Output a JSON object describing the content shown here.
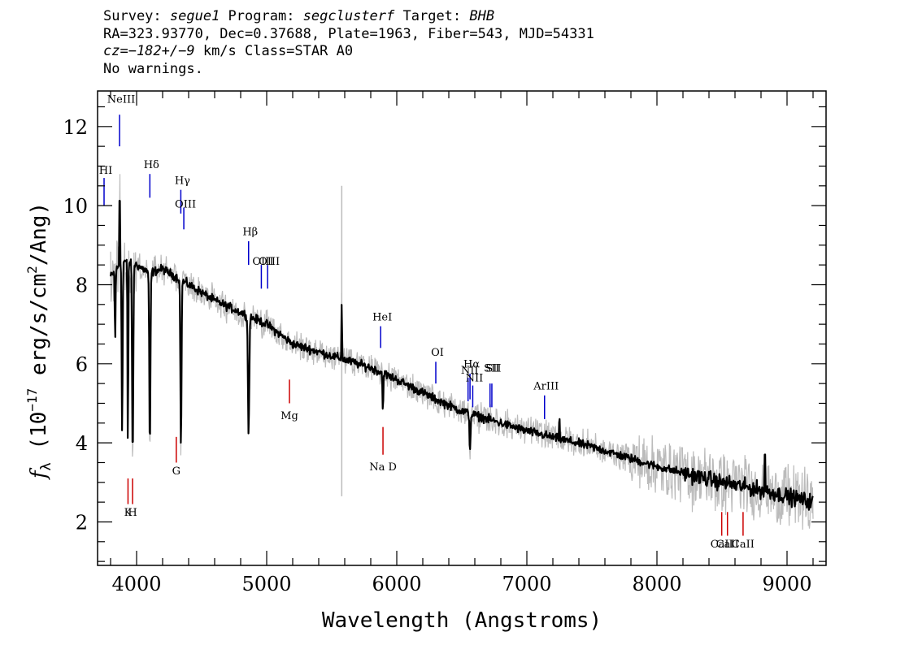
{
  "header": {
    "line1": {
      "survey_label": "Survey: ",
      "survey": "segue1",
      "program_label": " Program: ",
      "program": "segclusterf",
      "target_label": " Target: ",
      "target": "BHB"
    },
    "line2": "RA=323.93770, Dec=0.37688, Plate=1963, Fiber=543, MJD=54331",
    "line3": {
      "cz": "cz=−182+/−9",
      "rest": " km/s Class=STAR A0"
    },
    "line4": "No warnings."
  },
  "chart_data": {
    "type": "line",
    "xlabel": "Wavelength (Angstroms)",
    "ylabel_parts": {
      "f": "f",
      "sub": "λ",
      "unit_open": " (10",
      "exp": "−17",
      "unit_mid": " erg/s/cm",
      "exp2": "2",
      "unit_close": "/Ang)"
    },
    "xlim": [
      3700,
      9300
    ],
    "ylim": [
      0.9,
      12.9
    ],
    "x_ticks": [
      4000,
      5000,
      6000,
      7000,
      8000,
      9000
    ],
    "y_ticks": [
      2,
      4,
      6,
      8,
      10,
      12
    ],
    "spectrum": {
      "x_start": 3800,
      "x_end": 9200,
      "continuum_knots": [
        [
          3800,
          8.2
        ],
        [
          3900,
          8.6
        ],
        [
          4000,
          8.5
        ],
        [
          4100,
          8.3
        ],
        [
          4200,
          8.4
        ],
        [
          4400,
          8.0
        ],
        [
          4600,
          7.6
        ],
        [
          4800,
          7.3
        ],
        [
          5000,
          7.0
        ],
        [
          5200,
          6.5
        ],
        [
          5500,
          6.2
        ],
        [
          5800,
          5.9
        ],
        [
          6000,
          5.6
        ],
        [
          6300,
          5.1
        ],
        [
          6500,
          4.8
        ],
        [
          7000,
          4.3
        ],
        [
          7500,
          3.9
        ],
        [
          8000,
          3.4
        ],
        [
          8500,
          3.0
        ],
        [
          8800,
          2.8
        ],
        [
          9200,
          2.5
        ]
      ],
      "absorption_lines": [
        {
          "x": 3835,
          "depth": 1.8,
          "width": 4
        },
        {
          "x": 3889,
          "depth": 4.4,
          "width": 5
        },
        {
          "x": 3933,
          "depth": 4.8,
          "width": 4
        },
        {
          "x": 3970,
          "depth": 5.1,
          "width": 6
        },
        {
          "x": 4102,
          "depth": 4.6,
          "width": 6
        },
        {
          "x": 4341,
          "depth": 4.3,
          "width": 6
        },
        {
          "x": 4861,
          "depth": 3.0,
          "width": 7
        },
        {
          "x": 5893,
          "depth": 1.0,
          "width": 4
        },
        {
          "x": 6563,
          "depth": 0.9,
          "width": 6
        }
      ],
      "emission_spikes": [
        {
          "x": 3870,
          "height": 2.6
        },
        {
          "x": 5577,
          "height": 1.6
        },
        {
          "x": 7250,
          "height": 0.6
        },
        {
          "x": 8830,
          "height": 1.5
        }
      ]
    },
    "sky_line": {
      "x": 5577,
      "low": 2.65,
      "high": 10.5
    },
    "emission_line_markers": [
      {
        "name": "NeIII",
        "x": 3869,
        "y1": 11.5,
        "y2": 12.3,
        "label_y": 12.6
      },
      {
        "name": "HI",
        "x": 3750,
        "y1": 10.0,
        "y2": 10.7,
        "label_y": 10.8
      },
      {
        "name": "Hδ",
        "x": 4102,
        "y1": 10.2,
        "y2": 10.8,
        "label_y": 10.95
      },
      {
        "name": "Hγ",
        "x": 4340,
        "y1": 9.8,
        "y2": 10.4,
        "label_y": 10.55
      },
      {
        "name": "OIII",
        "x": 4363,
        "y1": 9.4,
        "y2": 9.95,
        "label_y": 9.95
      },
      {
        "name": "Hβ",
        "x": 4861,
        "y1": 8.5,
        "y2": 9.1,
        "label_y": 9.25
      },
      {
        "name": "OIII",
        "x": 4959,
        "y1": 7.9,
        "y2": 8.5,
        "label_y": 8.5
      },
      {
        "name": "OIII",
        "x": 5007,
        "y1": 7.9,
        "y2": 8.5,
        "label_y": 8.5
      },
      {
        "name": "HeI",
        "x": 5876,
        "y1": 6.4,
        "y2": 6.95,
        "label_y": 7.1
      },
      {
        "name": "OI",
        "x": 6300,
        "y1": 5.5,
        "y2": 6.05,
        "label_y": 6.2
      },
      {
        "name": "NII",
        "x": 6548,
        "y1": 5.05,
        "y2": 5.65,
        "label_y": 5.75
      },
      {
        "name": "Hα",
        "x": 6563,
        "y1": 5.1,
        "y2": 5.75,
        "label_y": 5.9
      },
      {
        "name": "NII",
        "x": 6584,
        "y1": 4.9,
        "y2": 5.45,
        "label_y": 5.55
      },
      {
        "name": "SII",
        "x": 6717,
        "y1": 4.9,
        "y2": 5.5,
        "label_y": 5.8
      },
      {
        "name": "SII",
        "x": 6731,
        "y1": 4.9,
        "y2": 5.5,
        "label_y": 5.8
      },
      {
        "name": "ArIII",
        "x": 7136,
        "y1": 4.6,
        "y2": 5.2,
        "label_y": 5.35
      }
    ],
    "absorption_line_markers": [
      {
        "name": "K",
        "x": 3934,
        "y1": 2.45,
        "y2": 3.1,
        "label_y": 2.15
      },
      {
        "name": "H",
        "x": 3969,
        "y1": 2.45,
        "y2": 3.1,
        "label_y": 2.15
      },
      {
        "name": "G",
        "x": 4305,
        "y1": 3.5,
        "y2": 4.15,
        "label_y": 3.2
      },
      {
        "name": "Mg",
        "x": 5175,
        "y1": 5.0,
        "y2": 5.6,
        "label_y": 4.6
      },
      {
        "name": "Na D",
        "x": 5894,
        "y1": 3.7,
        "y2": 4.4,
        "label_y": 3.3
      },
      {
        "name": "CaII",
        "x": 8498,
        "y1": 1.65,
        "y2": 2.25,
        "label_y": 1.35
      },
      {
        "name": "CaII",
        "x": 8542,
        "y1": 1.65,
        "y2": 2.25,
        "label_y": 1.35
      },
      {
        "name": "CaII",
        "x": 8662,
        "y1": 1.65,
        "y2": 2.25,
        "label_y": 1.35
      }
    ],
    "colors": {
      "flux": "#000000",
      "error_band": "#bbbbbb",
      "emission": "#0000cc",
      "absorption": "#cc0000",
      "sky": "#bbbbbb"
    }
  }
}
